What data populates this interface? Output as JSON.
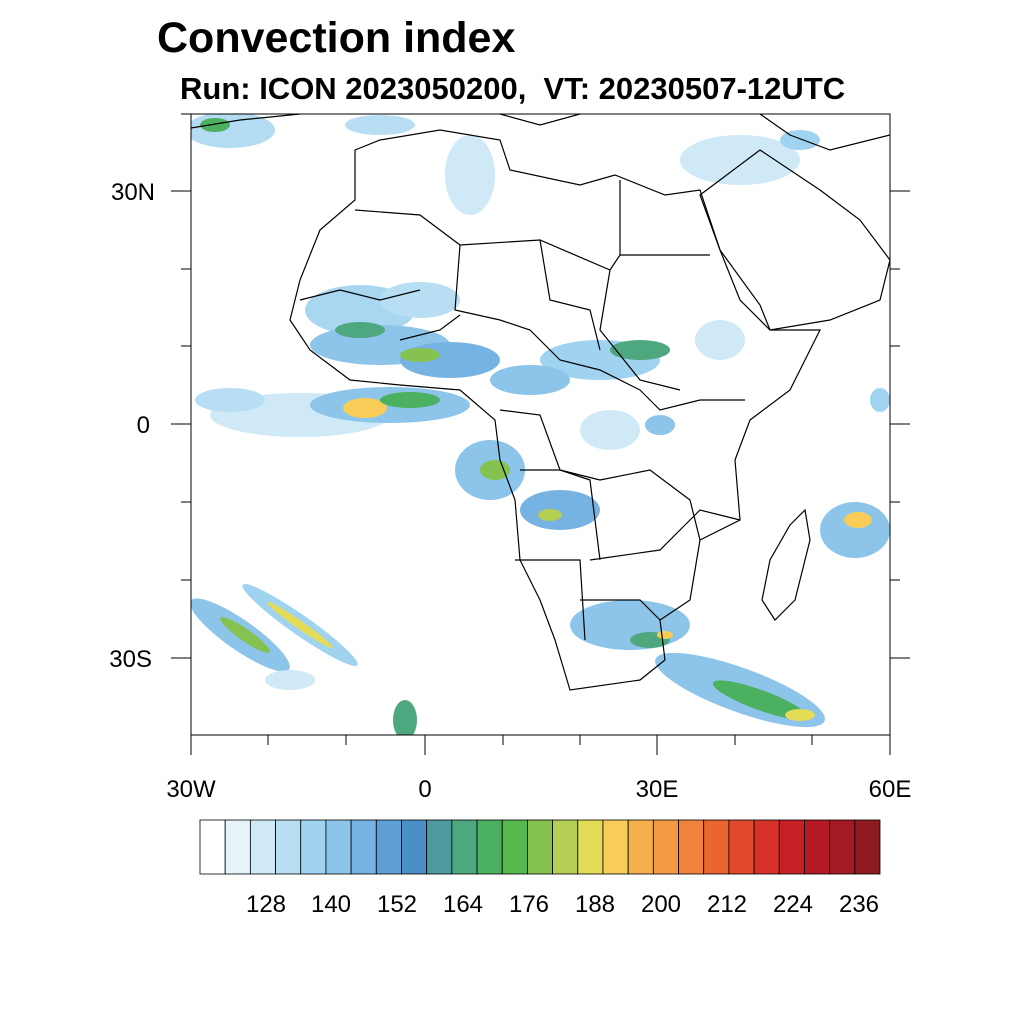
{
  "title": "Convection index",
  "subtitle": "Run: ICON 2023050200,  VT: 20230507-12UTC",
  "map": {
    "lon_range": [
      -30,
      60
    ],
    "lat_range": [
      -40,
      40
    ],
    "x_tick_labels": [
      "30W",
      "0",
      "30E",
      "60E"
    ],
    "y_tick_labels": [
      "30N",
      "0",
      "30S"
    ],
    "coastline_color": "#000000",
    "background": "#ffffff"
  },
  "colorbar": {
    "labels": [
      "128",
      "140",
      "152",
      "164",
      "176",
      "188",
      "200",
      "212",
      "224",
      "236"
    ],
    "colors": [
      "#ffffff",
      "#e6f3fb",
      "#cfe9f7",
      "#b8def3",
      "#a0d3ef",
      "#8cc4ea",
      "#76b3e2",
      "#5e9fd6",
      "#4a8fc8",
      "#4d9a9f",
      "#4ea87f",
      "#4bb05f",
      "#55b84a",
      "#86c24f",
      "#b5ce54",
      "#e4db57",
      "#f7cd57",
      "#f5b04d",
      "#f39a43",
      "#f0823b",
      "#ea6631",
      "#e0492b",
      "#d63229",
      "#c72127",
      "#b51a24",
      "#a31a22",
      "#8f1a1f"
    ]
  }
}
